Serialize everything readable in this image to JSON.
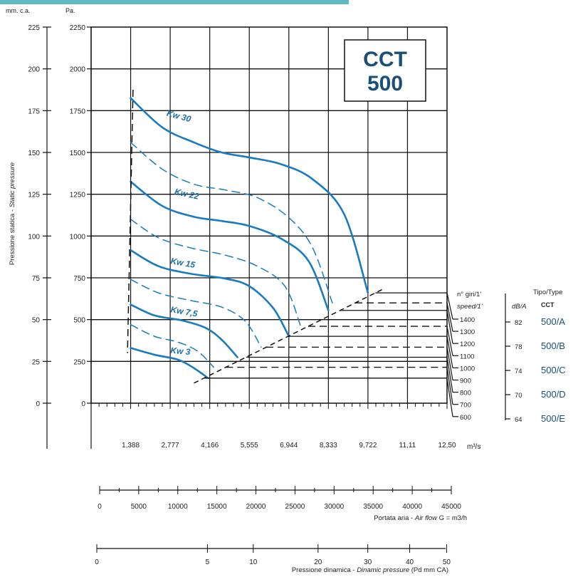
{
  "chart_data": {
    "type": "line",
    "title": "",
    "model_box": {
      "line1": "CCT",
      "line2": "500"
    },
    "y_axis": {
      "label_prefix": "Pressione statica - ",
      "label_italic": "Static pressure",
      "unit_mmca": "mm. c.a.",
      "unit_pa": "Pa.",
      "mmca_ticks": [
        "0",
        "25",
        "50",
        "75",
        "100",
        "125",
        "150",
        "175",
        "200",
        "225"
      ],
      "pa_ticks": [
        "0",
        "250",
        "500",
        "750",
        "1000",
        "1250",
        "1500",
        "1750",
        "2000",
        "2250"
      ],
      "ylim_pa": [
        0,
        2250
      ]
    },
    "x_axis_m3s": {
      "unit": "m³/s",
      "ticks": [
        "1,388",
        "2,777",
        "4,166",
        "5,555",
        "6,944",
        "8,333",
        "9,722",
        "11,11",
        "12,50"
      ],
      "xlim_m3h": [
        0,
        45000
      ]
    },
    "x_axis_m3h": {
      "label_prefix": "Portata aria - ",
      "label_italic": "Air flow",
      "label_suffix": " G = m3/h",
      "ticks": [
        "0",
        "5000",
        "10000",
        "15000",
        "20000",
        "25000",
        "30000",
        "35000",
        "40000",
        "45000"
      ]
    },
    "x_axis_dynamic": {
      "label_prefix": "Pressione dinamica - ",
      "label_italic": "Dinamic pressure",
      "label_suffix": " (Pd mm CA)",
      "ticks": [
        "0",
        "5",
        "10",
        "20",
        "30",
        "40",
        "50"
      ]
    },
    "speed_header": {
      "line1": "n° giri/1'",
      "line2": "speed/1'"
    },
    "dba_header": "dB/A",
    "type_header": {
      "line1": "Tipo/Type",
      "line2": "CCT"
    },
    "speeds": [
      {
        "rpm": "1400",
        "pressure_pa": 660
      },
      {
        "rpm": "1300",
        "pressure_pa": 600
      },
      {
        "rpm": "1200",
        "pressure_pa": 555
      },
      {
        "rpm": "1100",
        "pressure_pa": 460
      },
      {
        "rpm": "1000",
        "pressure_pa": 400
      },
      {
        "rpm": "900",
        "pressure_pa": 335
      },
      {
        "rpm": "800",
        "pressure_pa": 275
      },
      {
        "rpm": "700",
        "pressure_pa": 215
      },
      {
        "rpm": "600",
        "pressure_pa": 150
      }
    ],
    "types": [
      {
        "dba": "82",
        "name": "500/A"
      },
      {
        "dba": "78",
        "name": "500/B"
      },
      {
        "dba": "74",
        "name": "500/C"
      },
      {
        "dba": "70",
        "name": "500/D"
      },
      {
        "dba": "64",
        "name": "500/E"
      }
    ],
    "series": [
      {
        "name": "Kw 30",
        "style": "solid",
        "points": [
          [
            5000,
            1825
          ],
          [
            9000,
            1650
          ],
          [
            13000,
            1560
          ],
          [
            16500,
            1500
          ],
          [
            20000,
            1470
          ],
          [
            24000,
            1430
          ],
          [
            28000,
            1340
          ],
          [
            32000,
            1130
          ],
          [
            35000,
            660
          ]
        ]
      },
      {
        "name": "",
        "style": "dashed",
        "points": [
          [
            5000,
            1560
          ],
          [
            9000,
            1400
          ],
          [
            13000,
            1310
          ],
          [
            17000,
            1275
          ],
          [
            21000,
            1230
          ],
          [
            25000,
            1110
          ],
          [
            28000,
            930
          ],
          [
            30500,
            600
          ]
        ]
      },
      {
        "name": "Kw 22",
        "style": "solid",
        "points": [
          [
            5000,
            1325
          ],
          [
            9000,
            1180
          ],
          [
            13000,
            1115
          ],
          [
            16500,
            1090
          ],
          [
            20000,
            1060
          ],
          [
            24000,
            985
          ],
          [
            27500,
            850
          ],
          [
            30000,
            555
          ]
        ]
      },
      {
        "name": "",
        "style": "dashed",
        "points": [
          [
            5000,
            1100
          ],
          [
            8500,
            990
          ],
          [
            12500,
            930
          ],
          [
            17000,
            885
          ],
          [
            21000,
            820
          ],
          [
            24500,
            700
          ],
          [
            26500,
            460
          ]
        ]
      },
      {
        "name": "Kw 15",
        "style": "solid",
        "points": [
          [
            5000,
            915
          ],
          [
            8500,
            820
          ],
          [
            12500,
            775
          ],
          [
            17000,
            745
          ],
          [
            20000,
            700
          ],
          [
            23000,
            570
          ],
          [
            25000,
            400
          ]
        ]
      },
      {
        "name": "",
        "style": "dashed",
        "points": [
          [
            5000,
            740
          ],
          [
            8500,
            660
          ],
          [
            12500,
            615
          ],
          [
            16500,
            575
          ],
          [
            19500,
            490
          ],
          [
            21500,
            335
          ]
        ]
      },
      {
        "name": "Kw 7,5",
        "style": "solid",
        "points": [
          [
            5000,
            590
          ],
          [
            8000,
            525
          ],
          [
            11500,
            495
          ],
          [
            14500,
            450
          ],
          [
            16500,
            380
          ],
          [
            18500,
            275
          ]
        ]
      },
      {
        "name": "",
        "style": "dashed",
        "points": [
          [
            5000,
            470
          ],
          [
            8000,
            400
          ],
          [
            11000,
            365
          ],
          [
            13500,
            310
          ],
          [
            15500,
            215
          ]
        ]
      },
      {
        "name": "Kw 3",
        "style": "solid",
        "points": [
          [
            5000,
            330
          ],
          [
            8000,
            290
          ],
          [
            11000,
            260
          ],
          [
            13000,
            210
          ],
          [
            14800,
            150
          ]
        ]
      }
    ],
    "operating_limit_line": {
      "style": "dashed",
      "points": [
        [
          13000,
          120
        ],
        [
          36800,
          680
        ]
      ]
    },
    "min_flow_line": {
      "style": "dashed",
      "points": [
        [
          5300,
          1875
        ],
        [
          4600,
          300
        ]
      ]
    }
  }
}
